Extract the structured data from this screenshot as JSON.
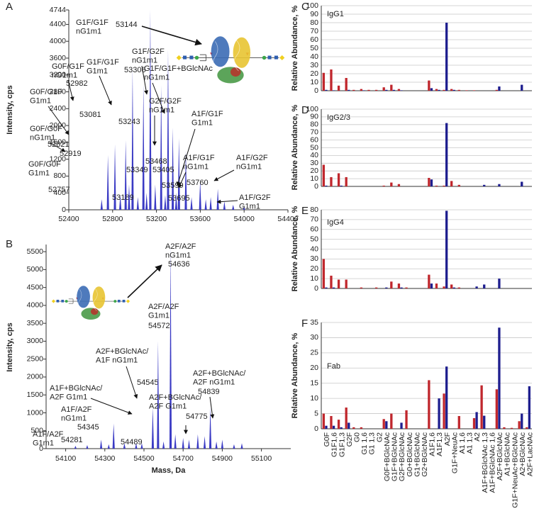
{
  "chart_data": [
    {
      "type": "spectrum",
      "panel_label": "A",
      "ylabel": "Intensity, cps",
      "xlim": [
        52400,
        54400
      ],
      "xticks": [
        52400,
        52800,
        53200,
        53600,
        54000,
        54400
      ],
      "ylim": [
        0,
        4744
      ],
      "yticks": [
        0,
        400,
        800,
        1200,
        1600,
        2000,
        2400,
        2800,
        3200,
        3600,
        4000,
        4400,
        4744
      ],
      "series": [
        {
          "color": "#3a3ac4",
          "labeled": true,
          "x": [
            52757,
            52821,
            52919,
            52982,
            53081,
            53144,
            53189,
            53243,
            53306,
            53349,
            53405,
            53468,
            53599,
            53695,
            53760
          ],
          "values": [
            1300,
            1550,
            1650,
            3350,
            3000,
            4744,
            600,
            2950,
            3800,
            1950,
            1700,
            1400,
            700,
            300,
            500
          ]
        },
        {
          "color": "#3a3ac4",
          "labeled": false,
          "x": [
            52700,
            52870,
            52950,
            53030,
            53110,
            53280,
            53380,
            53520,
            53650,
            53820,
            53900,
            54000
          ],
          "values": [
            250,
            350,
            600,
            300,
            400,
            350,
            400,
            300,
            250,
            200,
            120,
            80
          ]
        }
      ],
      "annotations": [
        [
          "G1F/G1F",
          "nG1m1"
        ],
        [
          "G1F/G1F",
          "G1m1"
        ],
        [
          "G0F/G1F",
          "nG1m1"
        ],
        [
          "G1F/G2F",
          "nG1m1"
        ],
        [
          "G1F/G1F+BGlcNAc",
          "nG1m1"
        ],
        [
          "G0F/G1F",
          "G1m1"
        ],
        [
          "G2F/G2F",
          "nG1m1"
        ],
        [
          "G0F/G0F",
          "nG1m1"
        ],
        [
          "A1F/G1F",
          "G1m1"
        ],
        [
          "A1F/G1F",
          "nG1m1"
        ],
        [
          "A1F/G2F",
          "nG1m1"
        ],
        [
          "G0F/G0F",
          "G1m1"
        ],
        [
          "A1F/G2F",
          "G1m1"
        ]
      ]
    },
    {
      "type": "spectrum",
      "panel_label": "B",
      "ylabel": "Intensity, cps",
      "xlabel": "Mass, Da",
      "xlim": [
        54000,
        55250
      ],
      "xticks": [
        54100,
        54300,
        54500,
        54700,
        54900,
        55100
      ],
      "ylim": [
        0,
        5700
      ],
      "yticks": [
        0,
        500,
        1000,
        1500,
        2000,
        2500,
        3000,
        3500,
        4000,
        4500,
        5000,
        5500
      ],
      "series": [
        {
          "color": "#3a3ac4",
          "labeled": true,
          "x": [
            54281,
            54345,
            54489,
            54545,
            54572,
            54636,
            54775,
            54839
          ],
          "values": [
            250,
            700,
            150,
            1150,
            3000,
            5650,
            400,
            1150
          ]
        },
        {
          "color": "#3a3ac4",
          "labeled": false,
          "x": [
            54150,
            54210,
            54320,
            54400,
            54460,
            54600,
            54660,
            54700,
            54730,
            54810,
            54870,
            54900,
            54960,
            55000
          ],
          "values": [
            80,
            100,
            120,
            150,
            150,
            200,
            400,
            300,
            250,
            350,
            200,
            250,
            120,
            150
          ]
        }
      ],
      "annotations": [
        [
          "A2F/A2F",
          "nG1m1"
        ],
        [
          "A2F/A2F",
          "G1m1"
        ],
        [
          "A2F+BGlcNAc/",
          "A1F nG1m1"
        ],
        [
          "A1F+BGlcNAc/",
          "A2F G1m1"
        ],
        [
          "A1F/A2F",
          "nG1m1"
        ],
        [
          "A1F/A2F",
          "G1m1"
        ],
        [
          "A2F+BGlcNAc/",
          "A2F G1m1"
        ],
        [
          "A2F+BGlcNAc/",
          "A2F nG1m1"
        ]
      ]
    },
    {
      "type": "bar",
      "panel_label": "C",
      "subtitle": "IgG1",
      "ylabel": "Relative Abundance, %",
      "ylim": [
        0,
        100
      ],
      "yticks": [
        0,
        10,
        20,
        30,
        40,
        50,
        60,
        70,
        80,
        90,
        100
      ],
      "grid": true,
      "series": [
        {
          "color": "#c0272d",
          "values": [
            21,
            25,
            6,
            15,
            1,
            2,
            1,
            1,
            4,
            7,
            2,
            0,
            0,
            0,
            12,
            2,
            1,
            2,
            1,
            0.5,
            0.5,
            0,
            0,
            1,
            0,
            0,
            0,
            0
          ]
        },
        {
          "color": "#1f1f8f",
          "values": [
            1,
            0.5,
            0,
            1,
            0,
            0.5,
            0,
            0,
            1,
            1,
            0.5,
            0,
            0,
            0,
            3,
            1,
            80,
            1,
            0,
            0,
            0,
            0,
            0,
            5,
            0,
            0,
            7,
            0
          ]
        }
      ]
    },
    {
      "type": "bar",
      "panel_label": "D",
      "subtitle": "IgG2/3",
      "ylabel": "Relative Abundance, %",
      "ylim": [
        0,
        100
      ],
      "yticks": [
        0,
        10,
        20,
        30,
        40,
        50,
        60,
        70,
        80,
        90,
        100
      ],
      "grid": true,
      "series": [
        {
          "color": "#c0272d",
          "values": [
            28,
            12,
            17,
            12,
            0,
            0,
            0,
            0,
            1,
            5,
            3,
            0,
            0,
            0,
            11,
            1,
            1,
            7,
            2,
            0,
            0,
            0,
            0,
            0,
            0,
            0,
            0,
            0
          ]
        },
        {
          "color": "#1f1f8f",
          "values": [
            1,
            0,
            1,
            0,
            0,
            0,
            0,
            0,
            0,
            0,
            0,
            0,
            0,
            0,
            9,
            0,
            82,
            0,
            0,
            0,
            0,
            2,
            0,
            3,
            0,
            0,
            6,
            0
          ]
        }
      ]
    },
    {
      "type": "bar",
      "panel_label": "E",
      "subtitle": "IgG4",
      "ylabel": "Relative Abundance, %",
      "ylim": [
        0,
        80
      ],
      "yticks": [
        0,
        10,
        20,
        30,
        40,
        50,
        60,
        70,
        80
      ],
      "grid": true,
      "series": [
        {
          "color": "#c0272d",
          "values": [
            30,
            13,
            9,
            9,
            0,
            1,
            0,
            1,
            0,
            7,
            5,
            1,
            0,
            0,
            14,
            5,
            2,
            4,
            1,
            0,
            0,
            0,
            0,
            0,
            0,
            0,
            0,
            0
          ]
        },
        {
          "color": "#1f1f8f",
          "values": [
            1,
            1,
            0,
            0,
            0,
            0,
            0,
            0,
            1,
            0,
            1,
            0,
            0,
            0,
            5,
            0,
            79,
            1,
            0,
            0,
            2,
            4,
            0,
            10,
            0,
            0,
            0,
            0
          ]
        }
      ]
    },
    {
      "type": "bar",
      "panel_label": "F",
      "subtitle": "Fab",
      "ylabel": "Relative Abundance, %",
      "ylim": [
        0,
        35
      ],
      "yticks": [
        0,
        5,
        10,
        15,
        20,
        25,
        30,
        35
      ],
      "grid": true,
      "categories": [
        "G0F",
        "G1F1,6",
        "G1F1,3",
        "G2F",
        "G0",
        "G1 1,6",
        "G1 1,3",
        "G2",
        "G0F+BGlcNAc",
        "G1F+BGlcNAc",
        "G2F+BGlcNAc",
        "G0+BGlcNAc",
        "G1+BGlcNAc",
        "G2+BGlcNAc",
        "A1F1,6",
        "A1F1,3",
        "A2F",
        "G1F+NeuAc",
        "A1 1,6",
        "A1 1,3",
        "A2",
        "A1F+BGlcNAc 1,3",
        "A1F+BGlcNAc 1,6",
        "A2F+BGlcNAc",
        "A1+BGlcNAc",
        "G1F+NeuAc+BGlcNAc",
        "A2+BGlcNAc",
        "A2F+LacNAc"
      ],
      "series": [
        {
          "color": "#c0272d",
          "values": [
            5,
            4.2,
            3,
            7,
            0.5,
            0.5,
            0,
            0,
            3.2,
            5,
            0,
            6.1,
            0,
            0,
            16,
            0,
            11.6,
            0,
            4.2,
            0,
            3.5,
            14.3,
            0,
            13,
            0.5,
            0.3,
            2.5,
            0.5
          ]
        },
        {
          "color": "#1f1f8f",
          "values": [
            1,
            1,
            0.5,
            2,
            0,
            0,
            0,
            0,
            2.5,
            0,
            2,
            0,
            0,
            0,
            0,
            10,
            20.5,
            0,
            0,
            0,
            5.5,
            4.3,
            0,
            33.3,
            0,
            0,
            5,
            14
          ]
        }
      ]
    }
  ]
}
